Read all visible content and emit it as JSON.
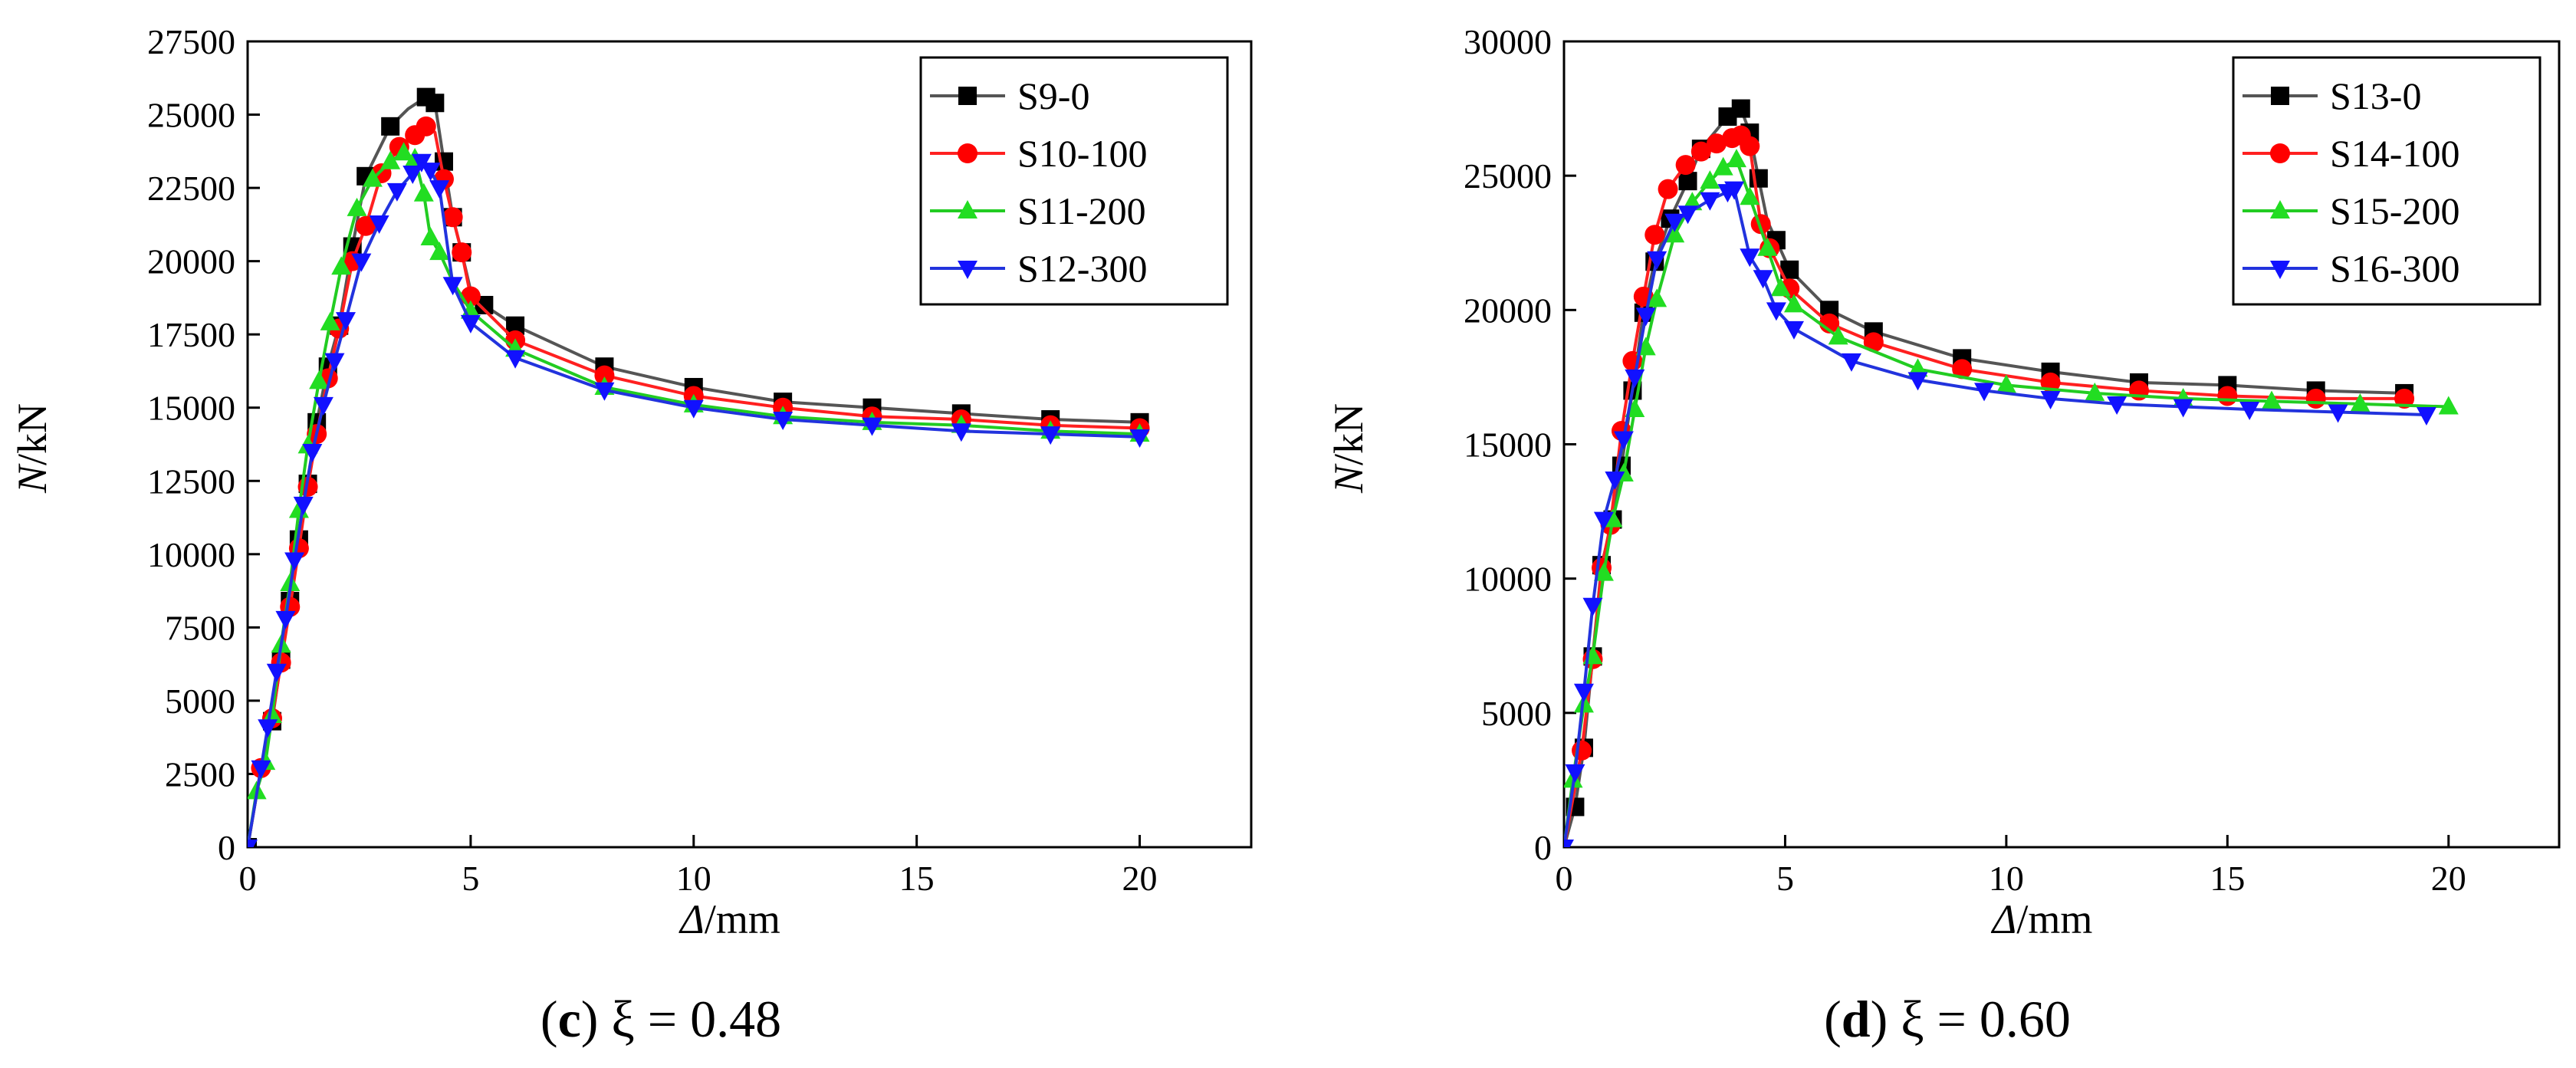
{
  "chart_data": [
    {
      "type": "line",
      "panel_letter": "c",
      "caption_rest": " ξ = 0.48",
      "xlabel_sym": "Δ",
      "xlabel_unit": "/mm",
      "ylabel_sym": "N",
      "ylabel_unit": "/kN",
      "xlim": [
        0,
        22.5
      ],
      "ylim": [
        0,
        27500
      ],
      "xticks": [
        0,
        5,
        10,
        15,
        20
      ],
      "yticks": [
        0,
        2500,
        5000,
        7500,
        10000,
        12500,
        15000,
        17500,
        20000,
        22500,
        25000,
        27500
      ],
      "legend_position": "top-right",
      "grid": false,
      "series": [
        {
          "name": "S9-0",
          "color": "#555555",
          "marker_color": "#000000",
          "marker": "square",
          "x": [
            0,
            0.3,
            0.55,
            0.75,
            0.95,
            1.15,
            1.35,
            1.55,
            1.8,
            2.05,
            2.35,
            2.65,
            3.2,
            3.6,
            4.0,
            4.2,
            4.4,
            4.6,
            4.8,
            5.0,
            5.3,
            6.0,
            8.0,
            10.0,
            12.0,
            14.0,
            16.0,
            18.0,
            20.0
          ],
          "y": [
            0,
            2700,
            4300,
            6400,
            8400,
            10500,
            12400,
            14500,
            16400,
            17800,
            20500,
            22900,
            24600,
            25200,
            25600,
            25400,
            23400,
            21500,
            20300,
            19000,
            18500,
            17800,
            16400,
            15700,
            15200,
            15000,
            14800,
            14600,
            14500
          ],
          "marks": [
            0,
            2,
            3,
            4,
            5,
            6,
            7,
            8,
            9,
            10,
            11,
            12,
            14,
            15,
            16,
            17,
            18,
            20,
            21,
            22,
            23,
            24,
            25,
            26,
            27,
            28
          ]
        },
        {
          "name": "S10-100",
          "color": "#ff2020",
          "marker_color": "#ff0000",
          "marker": "circle",
          "x": [
            0,
            0.3,
            0.55,
            0.75,
            0.95,
            1.15,
            1.35,
            1.55,
            1.8,
            2.05,
            2.35,
            2.65,
            3.0,
            3.4,
            3.75,
            4.0,
            4.2,
            4.4,
            4.6,
            4.8,
            5.0,
            6.0,
            8.0,
            10.0,
            12.0,
            14.0,
            16.0,
            18.0,
            20.0
          ],
          "y": [
            0,
            2700,
            4400,
            6300,
            8200,
            10200,
            12300,
            14100,
            16000,
            17700,
            20000,
            21200,
            23000,
            23900,
            24300,
            24600,
            24400,
            22800,
            21500,
            20300,
            18800,
            17300,
            16100,
            15400,
            15000,
            14700,
            14600,
            14400,
            14300
          ],
          "marks": [
            1,
            2,
            3,
            4,
            5,
            6,
            7,
            8,
            9,
            10,
            11,
            12,
            13,
            14,
            15,
            17,
            18,
            19,
            20,
            21,
            22,
            23,
            24,
            25,
            26,
            27,
            28
          ]
        },
        {
          "name": "S11-200",
          "color": "#22cc22",
          "marker_color": "#22dd22",
          "marker": "triangle-up",
          "x": [
            0,
            0.2,
            0.4,
            0.55,
            0.75,
            0.95,
            1.15,
            1.35,
            1.6,
            1.85,
            2.1,
            2.45,
            2.8,
            3.2,
            3.5,
            3.75,
            3.95,
            4.1,
            4.3,
            4.6,
            5.0,
            6.0,
            8.0,
            10.0,
            12.0,
            14.0,
            16.0,
            18.0,
            20.0
          ],
          "y": [
            0,
            1900,
            2900,
            4500,
            6900,
            9000,
            11500,
            13700,
            15900,
            17900,
            19800,
            21800,
            22800,
            23400,
            23700,
            23500,
            22300,
            20800,
            20300,
            19300,
            18300,
            17000,
            15700,
            15100,
            14700,
            14500,
            14400,
            14200,
            14100
          ],
          "marks": [
            1,
            2,
            3,
            4,
            5,
            6,
            7,
            8,
            9,
            10,
            11,
            12,
            13,
            14,
            15,
            16,
            17,
            18,
            20,
            21,
            22,
            23,
            24,
            25,
            26,
            27,
            28
          ]
        },
        {
          "name": "S12-300",
          "color": "#2233dd",
          "marker_color": "#1111ff",
          "marker": "triangle-down",
          "x": [
            0,
            0.3,
            0.45,
            0.65,
            0.85,
            1.05,
            1.25,
            1.45,
            1.7,
            1.95,
            2.2,
            2.55,
            2.95,
            3.35,
            3.7,
            3.9,
            4.1,
            4.3,
            4.6,
            5.0,
            6.0,
            8.0,
            10.0,
            12.0,
            14.0,
            16.0,
            18.0,
            20.0
          ],
          "y": [
            0,
            2700,
            4100,
            6000,
            7800,
            9800,
            11700,
            13500,
            15100,
            16600,
            18000,
            20000,
            21300,
            22400,
            23000,
            23400,
            23100,
            22500,
            19200,
            17900,
            16700,
            15600,
            15000,
            14600,
            14400,
            14200,
            14100,
            14000
          ],
          "marks": [
            0,
            1,
            2,
            3,
            4,
            5,
            6,
            7,
            8,
            9,
            10,
            11,
            12,
            13,
            14,
            15,
            16,
            17,
            18,
            19,
            20,
            21,
            22,
            23,
            24,
            25,
            26,
            27
          ]
        }
      ]
    },
    {
      "type": "line",
      "panel_letter": "d",
      "caption_rest": " ξ = 0.60",
      "xlabel_sym": "Δ",
      "xlabel_unit": "/mm",
      "ylabel_sym": "N",
      "ylabel_unit": "/kN",
      "xlim": [
        0,
        22.5
      ],
      "ylim": [
        0,
        30000
      ],
      "xticks": [
        0,
        5,
        10,
        15,
        20
      ],
      "yticks": [
        0,
        5000,
        10000,
        15000,
        20000,
        25000,
        30000
      ],
      "legend_position": "top-right",
      "grid": false,
      "series": [
        {
          "name": "S13-0",
          "color": "#555555",
          "marker_color": "#000000",
          "marker": "square",
          "x": [
            0,
            0.25,
            0.45,
            0.65,
            0.85,
            1.1,
            1.3,
            1.55,
            1.8,
            2.05,
            2.4,
            2.8,
            3.1,
            3.7,
            4.0,
            4.2,
            4.4,
            4.6,
            4.8,
            5.1,
            6.0,
            7.0,
            9.0,
            11.0,
            13.0,
            15.0,
            17.0,
            19.0
          ],
          "y": [
            0,
            1500,
            3700,
            7100,
            10500,
            12200,
            14200,
            17000,
            19900,
            21800,
            23400,
            24800,
            26000,
            27200,
            27500,
            26600,
            24900,
            23300,
            22600,
            21500,
            20000,
            19200,
            18200,
            17700,
            17300,
            17200,
            17000,
            16900
          ],
          "marks": [
            1,
            2,
            3,
            4,
            5,
            6,
            7,
            8,
            9,
            10,
            11,
            12,
            13,
            14,
            15,
            16,
            18,
            19,
            20,
            21,
            22,
            23,
            24,
            25,
            26,
            27
          ]
        },
        {
          "name": "S14-100",
          "color": "#ff2020",
          "marker_color": "#ff0000",
          "marker": "circle",
          "x": [
            0,
            0.4,
            0.65,
            0.85,
            1.05,
            1.3,
            1.55,
            1.8,
            2.05,
            2.35,
            2.75,
            3.1,
            3.45,
            3.8,
            4.0,
            4.2,
            4.45,
            4.65,
            5.1,
            6.0,
            7.0,
            9.0,
            11.0,
            13.0,
            15.0,
            17.0,
            19.0
          ],
          "y": [
            0,
            3600,
            7000,
            10400,
            12000,
            15500,
            18100,
            20500,
            22800,
            24500,
            25400,
            25900,
            26200,
            26400,
            26500,
            26100,
            23200,
            22300,
            20800,
            19500,
            18800,
            17800,
            17300,
            17000,
            16800,
            16700,
            16700
          ],
          "marks": [
            1,
            2,
            3,
            4,
            5,
            6,
            7,
            8,
            9,
            10,
            11,
            12,
            13,
            14,
            15,
            16,
            17,
            18,
            19,
            20,
            21,
            22,
            23,
            24,
            25,
            26
          ]
        },
        {
          "name": "S15-200",
          "color": "#22cc22",
          "marker_color": "#22dd22",
          "marker": "triangle-up",
          "x": [
            0,
            0.2,
            0.45,
            0.65,
            0.9,
            1.1,
            1.35,
            1.6,
            1.85,
            2.1,
            2.5,
            2.9,
            3.3,
            3.6,
            3.9,
            4.2,
            4.6,
            4.9,
            5.2,
            6.2,
            8.0,
            10.0,
            12.0,
            14.0,
            16.0,
            18.0,
            20.0
          ],
          "y": [
            0,
            2500,
            5300,
            7100,
            10200,
            12200,
            13900,
            16300,
            18600,
            20400,
            22800,
            24000,
            24800,
            25300,
            25600,
            24200,
            22300,
            20800,
            20200,
            19000,
            17800,
            17200,
            16900,
            16700,
            16600,
            16500,
            16400
          ],
          "marks": [
            1,
            2,
            3,
            4,
            5,
            6,
            7,
            8,
            9,
            10,
            11,
            12,
            13,
            14,
            15,
            16,
            17,
            18,
            19,
            20,
            21,
            22,
            23,
            24,
            25,
            26
          ]
        },
        {
          "name": "S16-300",
          "color": "#2233dd",
          "marker_color": "#1111ff",
          "marker": "triangle-down",
          "x": [
            0,
            0.25,
            0.45,
            0.65,
            0.9,
            1.15,
            1.35,
            1.6,
            1.85,
            2.1,
            2.5,
            2.8,
            3.3,
            3.7,
            3.85,
            4.2,
            4.5,
            4.8,
            5.2,
            6.5,
            8.0,
            9.5,
            11.0,
            12.5,
            14.0,
            15.5,
            17.5,
            19.5
          ],
          "y": [
            0,
            2800,
            5800,
            9000,
            12200,
            13700,
            15200,
            17500,
            19800,
            21900,
            23300,
            23600,
            24100,
            24400,
            24500,
            22000,
            21200,
            20000,
            19300,
            18100,
            17400,
            17000,
            16700,
            16500,
            16400,
            16300,
            16200,
            16100
          ],
          "marks": [
            0,
            1,
            2,
            3,
            4,
            5,
            6,
            7,
            8,
            9,
            10,
            11,
            12,
            13,
            14,
            15,
            16,
            17,
            18,
            19,
            20,
            21,
            22,
            23,
            24,
            25,
            26,
            27
          ]
        }
      ]
    }
  ]
}
